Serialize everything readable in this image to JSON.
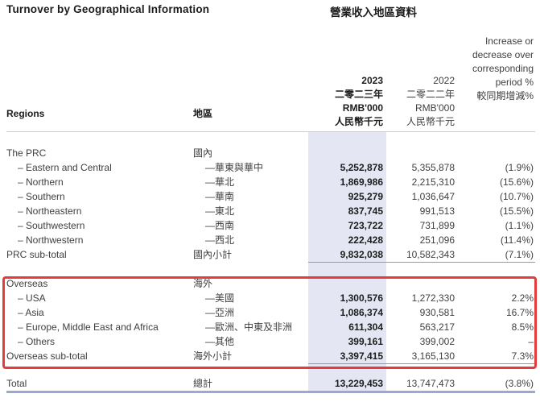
{
  "title": {
    "en": "Turnover by Geographical Information",
    "zh": "營業收入地區資料"
  },
  "table": {
    "header": {
      "regions_en": "Regions",
      "regions_zh": "地區",
      "col_2023": [
        "2023",
        "二零二三年",
        "RMB'000",
        "人民幣千元"
      ],
      "col_2022": [
        "2022",
        "二零二二年",
        "RMB'000",
        "人民幣千元"
      ],
      "col_change": [
        "Increase or",
        "decrease over",
        "corresponding",
        "period %",
        "較同期增減%"
      ]
    },
    "sections": [
      {
        "name": "prc",
        "rows": [
          {
            "kind": "group",
            "en": "The PRC",
            "zh": "國內",
            "v2023": "",
            "v2022": "",
            "pct": ""
          },
          {
            "kind": "item",
            "en": "– Eastern and Central",
            "zh": "—華東與華中",
            "v2023": "5,252,878",
            "v2022": "5,355,878",
            "pct": "(1.9%)"
          },
          {
            "kind": "item",
            "en": "– Northern",
            "zh": "—華北",
            "v2023": "1,869,986",
            "v2022": "2,215,310",
            "pct": "(15.6%)"
          },
          {
            "kind": "item",
            "en": "– Southern",
            "zh": "—華南",
            "v2023": "925,279",
            "v2022": "1,036,647",
            "pct": "(10.7%)"
          },
          {
            "kind": "item",
            "en": "– Northeastern",
            "zh": "—東北",
            "v2023": "837,745",
            "v2022": "991,513",
            "pct": "(15.5%)"
          },
          {
            "kind": "item",
            "en": "– Southwestern",
            "zh": "—西南",
            "v2023": "723,722",
            "v2022": "731,899",
            "pct": "(1.1%)"
          },
          {
            "kind": "item",
            "en": "– Northwestern",
            "zh": "—西北",
            "v2023": "222,428",
            "v2022": "251,096",
            "pct": "(11.4%)"
          },
          {
            "kind": "subtotal",
            "en": "PRC sub-total",
            "zh": "國內小計",
            "v2023": "9,832,038",
            "v2022": "10,582,343",
            "pct": "(7.1%)"
          }
        ]
      },
      {
        "name": "overseas",
        "annotated": true,
        "rows": [
          {
            "kind": "group",
            "en": "Overseas",
            "zh": "海外",
            "v2023": "",
            "v2022": "",
            "pct": ""
          },
          {
            "kind": "item",
            "en": "– USA",
            "zh": "—美國",
            "v2023": "1,300,576",
            "v2022": "1,272,330",
            "pct": "2.2%"
          },
          {
            "kind": "item",
            "en": "– Asia",
            "zh": "—亞洲",
            "v2023": "1,086,374",
            "v2022": "930,581",
            "pct": "16.7%"
          },
          {
            "kind": "item",
            "en": "– Europe, Middle East and Africa",
            "zh": "—歐洲、中東及非洲",
            "v2023": "611,304",
            "v2022": "563,217",
            "pct": "8.5%"
          },
          {
            "kind": "item",
            "en": "– Others",
            "zh": "—其他",
            "v2023": "399,161",
            "v2022": "399,002",
            "pct": "–"
          },
          {
            "kind": "subtotal",
            "en": "Overseas sub-total",
            "zh": "海外小計",
            "v2023": "3,397,415",
            "v2022": "3,165,130",
            "pct": "7.3%"
          }
        ]
      }
    ],
    "total": {
      "kind": "total",
      "en": "Total",
      "zh": "總計",
      "v2023": "13,229,453",
      "v2022": "13,747,473",
      "pct": "(3.8%)"
    }
  },
  "annotation": {
    "type": "red-box",
    "around": "overseas-section"
  },
  "colors": {
    "annotation_red": "#e23c3c",
    "highlight_column": "#e4e7f3",
    "header_rule": "#c3c9e6",
    "subtotal_rule": "#8c98c9",
    "total_rule": "#9ca7d4",
    "text_primary": "#3f3f3f",
    "text_strong": "#1c1c1c"
  }
}
